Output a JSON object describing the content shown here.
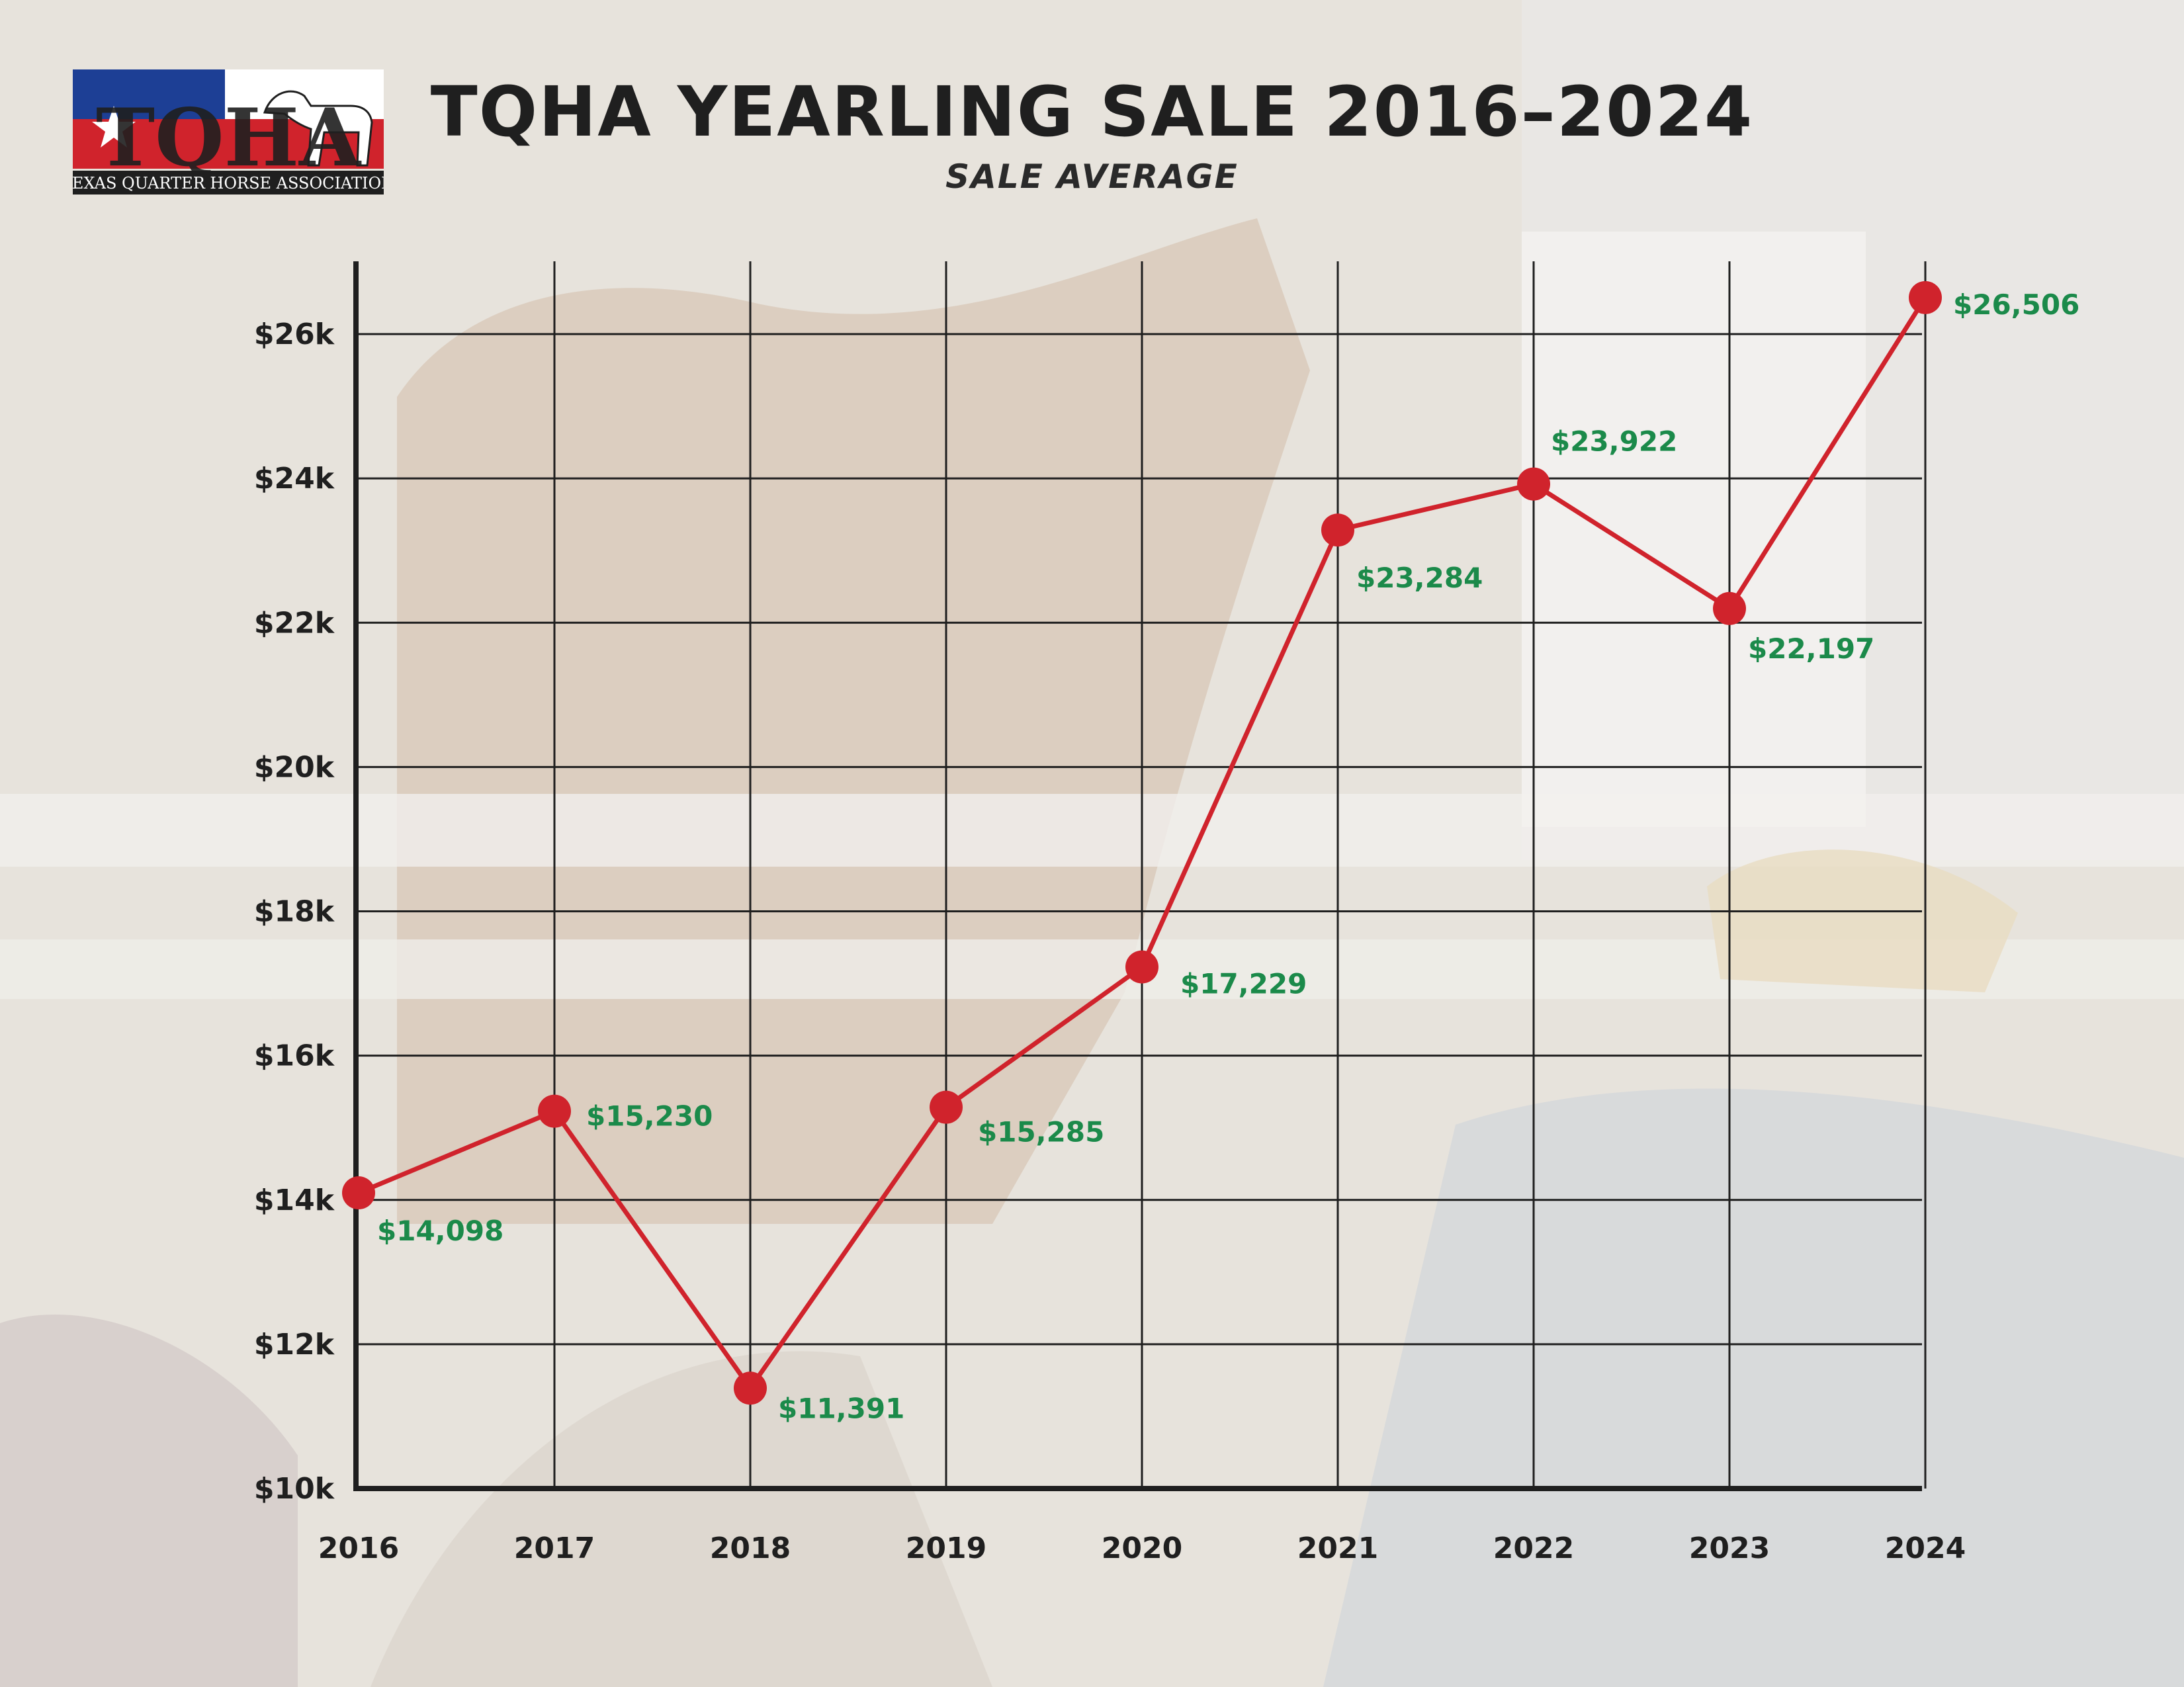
{
  "title": "TQHA YEARLING SALE 2016–2024",
  "subtitle": "SALE AVERAGE",
  "logo": {
    "letters": "TQHA",
    "tagline": "TEXAS QUARTER HORSE ASSOCIATION"
  },
  "colors": {
    "line": "#d0232c",
    "marker": "#d0232c",
    "data_label": "#1b8a4a",
    "grid": "#1f1f1f",
    "text": "#1f1f1f",
    "logo_blue": "#1d3f95",
    "logo_red": "#d0232c"
  },
  "chart_data": {
    "type": "line",
    "title": "TQHA YEARLING SALE 2016–2024",
    "subtitle": "SALE AVERAGE",
    "xlabel": "",
    "ylabel": "",
    "categories": [
      "2016",
      "2017",
      "2018",
      "2019",
      "2020",
      "2021",
      "2022",
      "2023",
      "2024"
    ],
    "series": [
      {
        "values": [
          14098,
          15230,
          11391,
          15285,
          17229,
          23284,
          23922,
          22197,
          26506
        ],
        "labels": [
          "$14,098",
          "$15,230",
          "$11,391",
          "$15,285",
          "$17,229",
          "$23,284",
          "$23,922",
          "$22,197",
          "$26,506"
        ]
      }
    ],
    "ylim": [
      10000,
      26000
    ],
    "yticks": [
      {
        "value": 10000,
        "label": "$10k"
      },
      {
        "value": 12000,
        "label": "$12k"
      },
      {
        "value": 14000,
        "label": "$14k"
      },
      {
        "value": 16000,
        "label": "$16k"
      },
      {
        "value": 18000,
        "label": "$18k"
      },
      {
        "value": 20000,
        "label": "$20k"
      },
      {
        "value": 22000,
        "label": "$22k"
      },
      {
        "value": 24000,
        "label": "$24k"
      },
      {
        "value": 26000,
        "label": "$26k"
      }
    ],
    "grid": true,
    "legend": "none"
  }
}
